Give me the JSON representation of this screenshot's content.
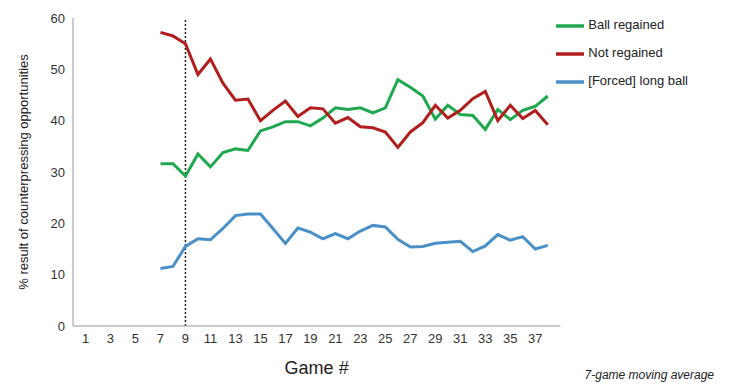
{
  "chart_data": {
    "type": "line",
    "x_label": "Game #",
    "y_label": "% result of counterpressing opportunities",
    "footnote": "7-game moving average",
    "x": [
      1,
      2,
      3,
      4,
      5,
      6,
      7,
      8,
      9,
      10,
      11,
      12,
      13,
      14,
      15,
      16,
      17,
      18,
      19,
      20,
      21,
      22,
      23,
      24,
      25,
      26,
      27,
      28,
      29,
      30,
      31,
      32,
      33,
      34,
      35,
      36,
      37,
      38
    ],
    "xlim": [
      0,
      39
    ],
    "xticks": [
      1,
      3,
      5,
      7,
      9,
      11,
      13,
      15,
      17,
      19,
      21,
      23,
      25,
      27,
      29,
      31,
      33,
      35,
      37
    ],
    "ylim": [
      0,
      60
    ],
    "yticks": [
      0,
      10,
      20,
      30,
      40,
      50,
      60
    ],
    "grid": false,
    "legend": "top-right",
    "annotations": [
      {
        "x": 9,
        "line_style": "dotted"
      }
    ],
    "series": [
      {
        "name": "Ball regained",
        "color": "#1fa84f",
        "marker": "none",
        "values": [
          null,
          null,
          null,
          null,
          null,
          null,
          31.6,
          31.6,
          29.2,
          33.5,
          31,
          33.8,
          34.5,
          34.2,
          38,
          38.8,
          39.8,
          39.8,
          39,
          40.5,
          42.5,
          42.2,
          42.5,
          41.5,
          42.5,
          48,
          46.5,
          44.8,
          40.3,
          43,
          41.2,
          41,
          38.3,
          42.2,
          40.2,
          42,
          42.8,
          44.8
        ]
      },
      {
        "name": "[Forced] long ball",
        "color": "#4a90c8",
        "marker": "none",
        "values": [
          null,
          null,
          null,
          null,
          null,
          null,
          11.2,
          11.6,
          15.5,
          17,
          16.8,
          19,
          21.5,
          21.8,
          21.8,
          19,
          16.1,
          19.1,
          18.3,
          17,
          18,
          17,
          18.5,
          19.6,
          19.3,
          16.9,
          15.4,
          15.5,
          16.1,
          16.3,
          16.5,
          14.5,
          15.6,
          17.8,
          16.7,
          17.4,
          15,
          15.7
        ]
      },
      {
        "name": "Not regained",
        "color": "#b01e1e",
        "marker": "none",
        "values": [
          null,
          null,
          null,
          null,
          null,
          null,
          57.2,
          56.5,
          55,
          49,
          52,
          47.3,
          44,
          44.2,
          40,
          42,
          43.8,
          40.8,
          42.5,
          42.3,
          39.5,
          40.6,
          38.8,
          38.6,
          37.8,
          34.8,
          37.8,
          39.6,
          43,
          40.5,
          42,
          44.3,
          45.7,
          40,
          43,
          40.4,
          42,
          39.2
        ]
      }
    ]
  }
}
